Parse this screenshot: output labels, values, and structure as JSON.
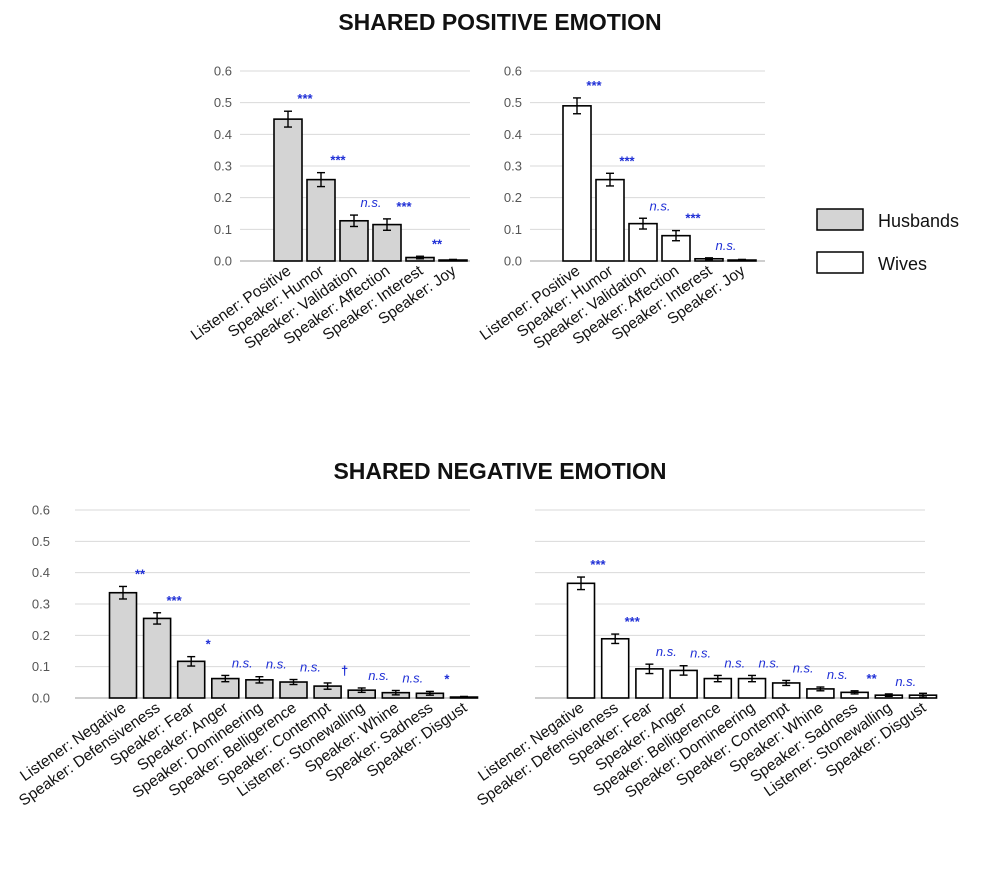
{
  "colors": {
    "husbands": "#d4d4d4",
    "wives": "#ffffff",
    "edge": "#000000",
    "grid": "#d9d9d9",
    "sig": "#1f2fd6"
  },
  "legend": [
    {
      "label": "Husbands",
      "color": "#d4d4d4"
    },
    {
      "label": "Wives",
      "color": "#ffffff"
    }
  ],
  "titles": {
    "positive": "SHARED POSITIVE EMOTION",
    "negative": "SHARED NEGATIVE EMOTION"
  },
  "chart_data": [
    {
      "type": "bar",
      "section": "SHARED POSITIVE EMOTION",
      "series": "Husbands",
      "ylim": [
        0,
        0.6
      ],
      "yticks": [
        "0.0",
        "0.1",
        "0.2",
        "0.3",
        "0.4",
        "0.5",
        "0.6"
      ],
      "show_y_tick_labels": true,
      "categories": [
        "Listener: Positive",
        "Speaker: Humor",
        "Speaker: Validation",
        "Speaker: Affection",
        "Speaker: Interest",
        "Speaker: Joy"
      ],
      "values": [
        0.448,
        0.257,
        0.127,
        0.115,
        0.011,
        0.003
      ],
      "errors": [
        0.025,
        0.022,
        0.018,
        0.018,
        0.004,
        0.002
      ],
      "significance": [
        "***",
        "***",
        "n.s.",
        "***",
        "**",
        ""
      ]
    },
    {
      "type": "bar",
      "section": "SHARED POSITIVE EMOTION",
      "series": "Wives",
      "ylim": [
        0,
        0.6
      ],
      "yticks": [
        "0.0",
        "0.1",
        "0.2",
        "0.3",
        "0.4",
        "0.5",
        "0.6"
      ],
      "show_y_tick_labels": true,
      "categories": [
        "Listener: Positive",
        "Speaker: Humor",
        "Speaker: Validation",
        "Speaker: Affection",
        "Speaker: Interest",
        "Speaker: Joy"
      ],
      "values": [
        0.49,
        0.257,
        0.118,
        0.08,
        0.007,
        0.003
      ],
      "errors": [
        0.025,
        0.02,
        0.017,
        0.016,
        0.003,
        0.002
      ],
      "significance": [
        "***",
        "***",
        "n.s.",
        "***",
        "n.s.",
        ""
      ]
    },
    {
      "type": "bar",
      "section": "SHARED NEGATIVE EMOTION",
      "series": "Husbands",
      "ylim": [
        0,
        0.6
      ],
      "yticks": [
        "0.0",
        "0.1",
        "0.2",
        "0.3",
        "0.4",
        "0.5",
        "0.6"
      ],
      "show_y_tick_labels": true,
      "categories": [
        "Listener: Negative",
        "Speaker: Defensiveness",
        "Speaker: Fear",
        "Speaker: Anger",
        "Speaker: Domineering",
        "Speaker: Belligerence",
        "Speaker: Contempt",
        "Listener: Stonewalling",
        "Speaker: Whine",
        "Speaker: Sadness",
        "Speaker: Disgust"
      ],
      "values": [
        0.336,
        0.254,
        0.117,
        0.062,
        0.058,
        0.051,
        0.038,
        0.025,
        0.017,
        0.015,
        0.003
      ],
      "errors": [
        0.02,
        0.018,
        0.015,
        0.01,
        0.01,
        0.008,
        0.01,
        0.007,
        0.007,
        0.006,
        0.002
      ],
      "significance": [
        "**",
        "***",
        "*",
        "n.s.",
        "n.s.",
        "n.s.",
        "†",
        "n.s.",
        "n.s.",
        "*",
        ""
      ]
    },
    {
      "type": "bar",
      "section": "SHARED NEGATIVE EMOTION",
      "series": "Wives",
      "ylim": [
        0,
        0.6
      ],
      "yticks": [
        "0.0",
        "0.1",
        "0.2",
        "0.3",
        "0.4",
        "0.5",
        "0.6"
      ],
      "show_y_tick_labels": false,
      "categories": [
        "Listener: Negative",
        "Speaker: Defensiveness",
        "Speaker: Fear",
        "Speaker: Anger",
        "Speaker: Belligerence",
        "Speaker: Domineering",
        "Speaker: Contempt",
        "Speaker: Whine",
        "Speaker: Sadness",
        "Listener: Stonewalling",
        "Speaker: Disgust"
      ],
      "values": [
        0.366,
        0.189,
        0.093,
        0.088,
        0.062,
        0.062,
        0.048,
        0.029,
        0.018,
        0.009,
        0.009
      ],
      "errors": [
        0.02,
        0.015,
        0.015,
        0.015,
        0.01,
        0.01,
        0.008,
        0.006,
        0.005,
        0.004,
        0.006
      ],
      "significance": [
        "***",
        "***",
        "n.s.",
        "n.s.",
        "n.s.",
        "n.s.",
        "n.s.",
        "n.s.",
        "**",
        "n.s.",
        ""
      ]
    }
  ]
}
